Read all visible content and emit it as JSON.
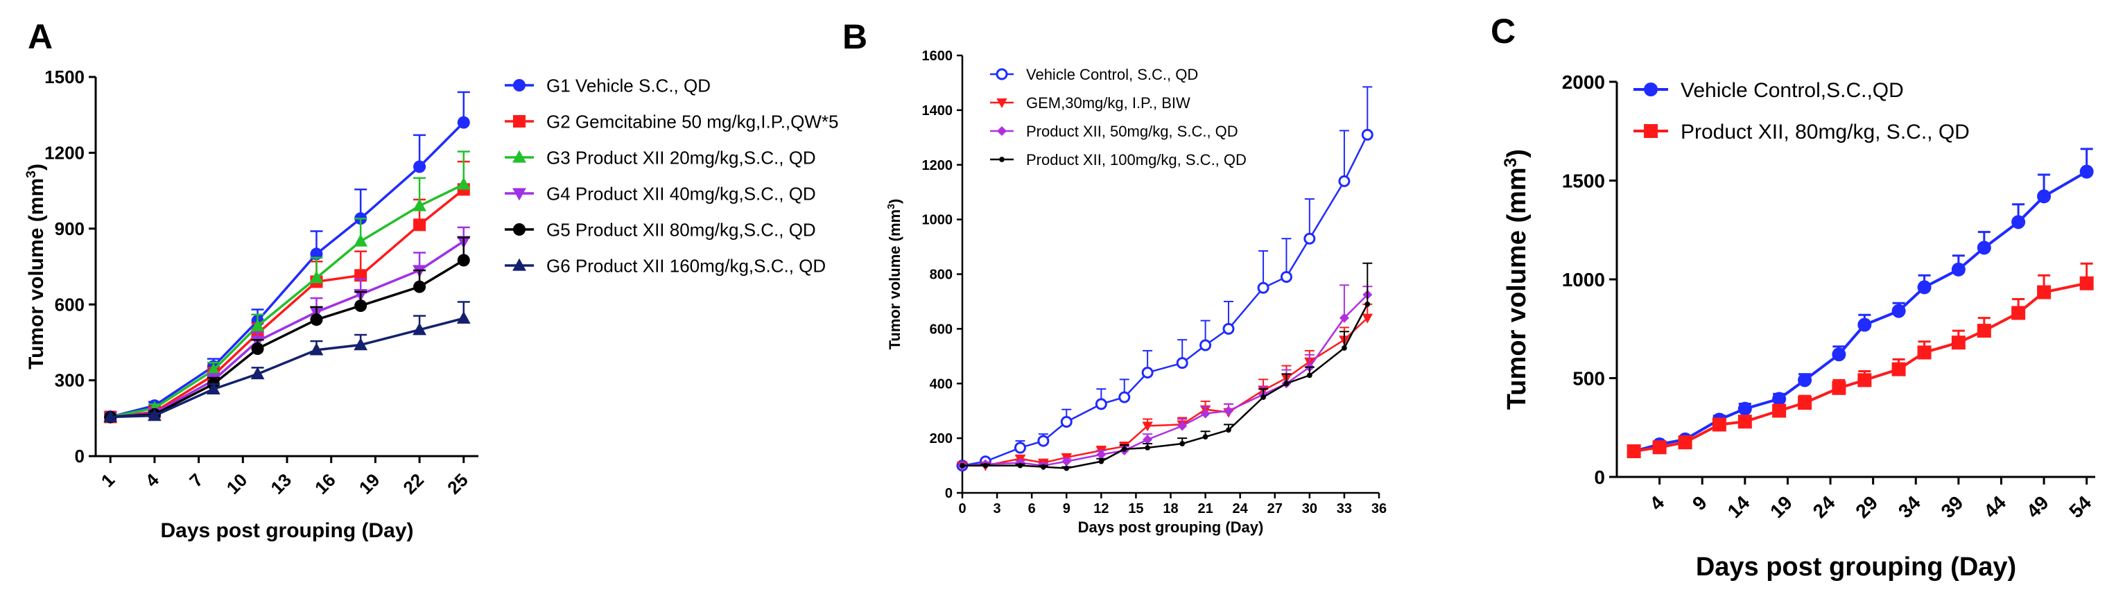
{
  "figure": {
    "panel_labels": [
      "A",
      "B",
      "C"
    ]
  },
  "chart_data": [
    {
      "panel": "A",
      "type": "line",
      "xlabel": "Days post grouping (Day)",
      "ylabel": "Tumor volume (mm",
      "ylabel_sup": "3",
      "ylabel_end": ")",
      "x_ticks": [
        1,
        4,
        7,
        10,
        13,
        16,
        19,
        22,
        25
      ],
      "y_ticks": [
        0,
        300,
        600,
        900,
        1200,
        1500
      ],
      "xlim": [
        0,
        26
      ],
      "ylim": [
        0,
        1500
      ],
      "legend_position": "right",
      "series": [
        {
          "name": "G1 Vehicle S.C., QD",
          "color": "#1f2bff",
          "marker": "circle",
          "x": [
            1,
            4,
            8,
            11,
            15,
            18,
            22,
            25
          ],
          "y": [
            155,
            200,
            355,
            535,
            800,
            940,
            1145,
            1320
          ],
          "err": [
            0,
            15,
            30,
            45,
            90,
            115,
            125,
            120
          ]
        },
        {
          "name": "G2 Gemcitabine 50 mg/kg,I.P.,QW*5",
          "color": "#ff1a1a",
          "marker": "square",
          "x": [
            1,
            4,
            8,
            11,
            15,
            18,
            22,
            25
          ],
          "y": [
            155,
            175,
            320,
            485,
            690,
            715,
            915,
            1055
          ],
          "err": [
            0,
            15,
            30,
            40,
            80,
            95,
            100,
            110
          ]
        },
        {
          "name": "G3 Product XII 20mg/kg,S.C., QD",
          "color": "#22c02a",
          "marker": "triangle-up",
          "x": [
            1,
            4,
            8,
            11,
            15,
            18,
            22,
            25
          ],
          "y": [
            155,
            190,
            340,
            515,
            705,
            850,
            990,
            1075
          ],
          "err": [
            0,
            15,
            30,
            45,
            80,
            90,
            110,
            130
          ]
        },
        {
          "name": "G4 Product XII 40mg/kg,S.C., QD",
          "color": "#a030e6",
          "marker": "triangle-down",
          "x": [
            1,
            4,
            8,
            11,
            15,
            18,
            22,
            25
          ],
          "y": [
            155,
            170,
            300,
            455,
            570,
            640,
            735,
            850
          ],
          "err": [
            0,
            12,
            25,
            35,
            55,
            60,
            70,
            55
          ]
        },
        {
          "name": "G5 Product XII 80mg/kg,S.C., QD",
          "color": "#000000",
          "marker": "circle",
          "x": [
            1,
            4,
            8,
            11,
            15,
            18,
            22,
            25
          ],
          "y": [
            155,
            165,
            285,
            425,
            540,
            595,
            670,
            775
          ],
          "err": [
            0,
            12,
            25,
            35,
            50,
            55,
            65,
            90
          ]
        },
        {
          "name": "G6 Product XII 160mg/kg,S.C., QD",
          "color": "#14206e",
          "marker": "triangle-up",
          "x": [
            1,
            4,
            8,
            11,
            15,
            18,
            22,
            25
          ],
          "y": [
            155,
            160,
            265,
            325,
            420,
            440,
            500,
            545
          ],
          "err": [
            0,
            10,
            20,
            25,
            35,
            40,
            55,
            65
          ]
        }
      ]
    },
    {
      "panel": "B",
      "type": "line",
      "xlabel": "Days post grouping (Day)",
      "ylabel": "Tumor volume (mm",
      "ylabel_sup": "3",
      "ylabel_end": ")",
      "x_ticks": [
        0,
        3,
        6,
        9,
        12,
        15,
        18,
        21,
        24,
        27,
        30,
        33,
        36
      ],
      "y_ticks": [
        0,
        200,
        400,
        600,
        800,
        1000,
        1200,
        1400,
        1600
      ],
      "xlim": [
        0,
        36
      ],
      "ylim": [
        0,
        1600
      ],
      "legend_position": "top-left",
      "series": [
        {
          "name": "Vehicle Control, S.C., QD",
          "color": "#1f2bff",
          "marker": "open-circle",
          "x": [
            0,
            2,
            5,
            7,
            9,
            12,
            14,
            16,
            19,
            21,
            23,
            26,
            28,
            30,
            33,
            35
          ],
          "y": [
            100,
            115,
            165,
            190,
            260,
            325,
            350,
            440,
            475,
            540,
            600,
            750,
            790,
            930,
            1140,
            1310
          ],
          "err": [
            0,
            10,
            25,
            25,
            45,
            55,
            65,
            80,
            85,
            90,
            100,
            135,
            140,
            145,
            185,
            175
          ]
        },
        {
          "name": "GEM,30mg/kg, I.P., BIW",
          "color": "#ff1a1a",
          "marker": "triangle-down",
          "x": [
            0,
            2,
            5,
            7,
            9,
            12,
            14,
            16,
            19,
            21,
            23,
            26,
            28,
            30,
            33,
            35
          ],
          "y": [
            100,
            100,
            125,
            110,
            130,
            155,
            170,
            245,
            250,
            305,
            295,
            375,
            420,
            480,
            560,
            640
          ],
          "err": [
            0,
            5,
            10,
            10,
            12,
            15,
            15,
            25,
            25,
            30,
            30,
            40,
            45,
            40,
            45,
            50
          ]
        },
        {
          "name": "Product XII, 50mg/kg, S.C., QD",
          "color": "#b030e0",
          "marker": "diamond",
          "x": [
            0,
            2,
            5,
            7,
            9,
            12,
            14,
            16,
            19,
            21,
            23,
            26,
            28,
            30,
            33,
            35
          ],
          "y": [
            100,
            105,
            110,
            100,
            115,
            140,
            155,
            195,
            245,
            290,
            300,
            360,
            400,
            460,
            640,
            725
          ],
          "err": [
            0,
            5,
            8,
            8,
            10,
            15,
            15,
            20,
            25,
            25,
            25,
            30,
            50,
            45,
            120,
            30
          ]
        },
        {
          "name": "Product XII, 100mg/kg, S.C., QD",
          "color": "#000000",
          "marker": "dot",
          "x": [
            0,
            2,
            5,
            7,
            9,
            12,
            14,
            16,
            19,
            21,
            23,
            26,
            28,
            30,
            33,
            35
          ],
          "y": [
            100,
            100,
            100,
            95,
            90,
            115,
            160,
            165,
            180,
            205,
            230,
            350,
            400,
            430,
            530,
            690
          ],
          "err": [
            0,
            5,
            5,
            5,
            5,
            10,
            15,
            15,
            20,
            20,
            20,
            30,
            35,
            30,
            60,
            150
          ]
        }
      ]
    },
    {
      "panel": "C",
      "type": "line",
      "xlabel": "Days post grouping (Day)",
      "ylabel": "Tumor volume (mm",
      "ylabel_sup": "3",
      "ylabel_end": ")",
      "x_ticks": [
        4,
        9,
        14,
        19,
        24,
        29,
        34,
        39,
        44,
        49,
        54
      ],
      "y_ticks": [
        0,
        500,
        1000,
        1500,
        2000
      ],
      "xlim": [
        -1,
        55
      ],
      "ylim": [
        0,
        2000
      ],
      "legend_position": "top-left",
      "series": [
        {
          "name": "Vehicle Control,S.C.,QD",
          "color": "#1f2bff",
          "marker": "circle",
          "x": [
            1,
            4,
            7,
            11,
            14,
            18,
            21,
            25,
            28,
            32,
            35,
            39,
            42,
            46,
            49,
            54
          ],
          "y": [
            130,
            165,
            190,
            290,
            345,
            395,
            490,
            620,
            770,
            840,
            960,
            1050,
            1160,
            1290,
            1420,
            1545
          ],
          "err": [
            0,
            10,
            15,
            20,
            25,
            25,
            30,
            40,
            50,
            40,
            60,
            70,
            80,
            90,
            110,
            115
          ]
        },
        {
          "name": "Product XII, 80mg/kg, S.C., QD",
          "color": "#ff1a1a",
          "marker": "square",
          "x": [
            1,
            4,
            7,
            11,
            14,
            18,
            21,
            25,
            28,
            32,
            35,
            39,
            42,
            46,
            49,
            54
          ],
          "y": [
            130,
            150,
            175,
            265,
            280,
            335,
            375,
            450,
            490,
            545,
            630,
            680,
            740,
            830,
            935,
            980
          ],
          "err": [
            0,
            10,
            15,
            20,
            20,
            30,
            35,
            40,
            45,
            50,
            55,
            60,
            65,
            70,
            85,
            100
          ]
        }
      ]
    }
  ]
}
